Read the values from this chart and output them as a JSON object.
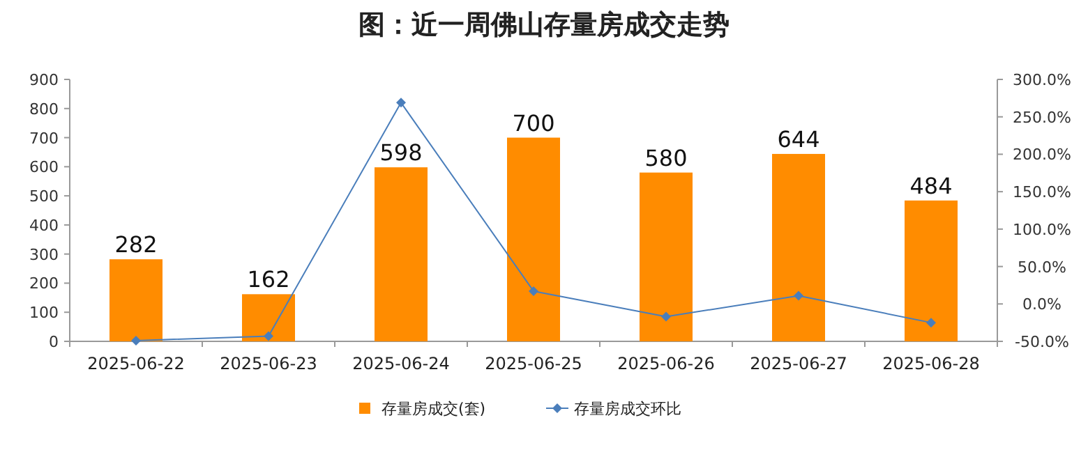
{
  "chart_data": {
    "type": "bar",
    "title": "图：近一周佛山存量房成交走势",
    "categories": [
      "2025-06-22",
      "2025-06-23",
      "2025-06-24",
      "2025-06-25",
      "2025-06-26",
      "2025-06-27",
      "2025-06-28"
    ],
    "series": [
      {
        "name": "存量房成交(套)",
        "color": "#ff8c00",
        "values": [
          282,
          162,
          598,
          700,
          580,
          644,
          484
        ],
        "value_labels": [
          "282",
          "162",
          "598",
          "700",
          "580",
          "644",
          "484"
        ]
      },
      {
        "name": "存量房成交环比",
        "type": "line",
        "axis": "y2",
        "color": "#4a7ebb",
        "marker": "diamond",
        "values": [
          -49,
          -43,
          269,
          17,
          -17,
          11,
          -25
        ]
      }
    ],
    "ylim": [
      0,
      900
    ],
    "yticks": [
      0,
      100,
      200,
      300,
      400,
      500,
      600,
      700,
      800,
      900
    ],
    "y2lim": [
      -50,
      300
    ],
    "y2ticks": [
      {
        "value": -50,
        "label": "-50.0%"
      },
      {
        "value": 0,
        "label": "0.0%"
      },
      {
        "value": 50,
        "label": "50.0%"
      },
      {
        "value": 100,
        "label": "100.0%"
      },
      {
        "value": 150,
        "label": "150.0%"
      },
      {
        "value": 200,
        "label": "200.0%"
      },
      {
        "value": 250,
        "label": "250.0%"
      },
      {
        "value": 300,
        "label": "300.0%"
      }
    ],
    "grid": false,
    "legend": "bottom"
  }
}
